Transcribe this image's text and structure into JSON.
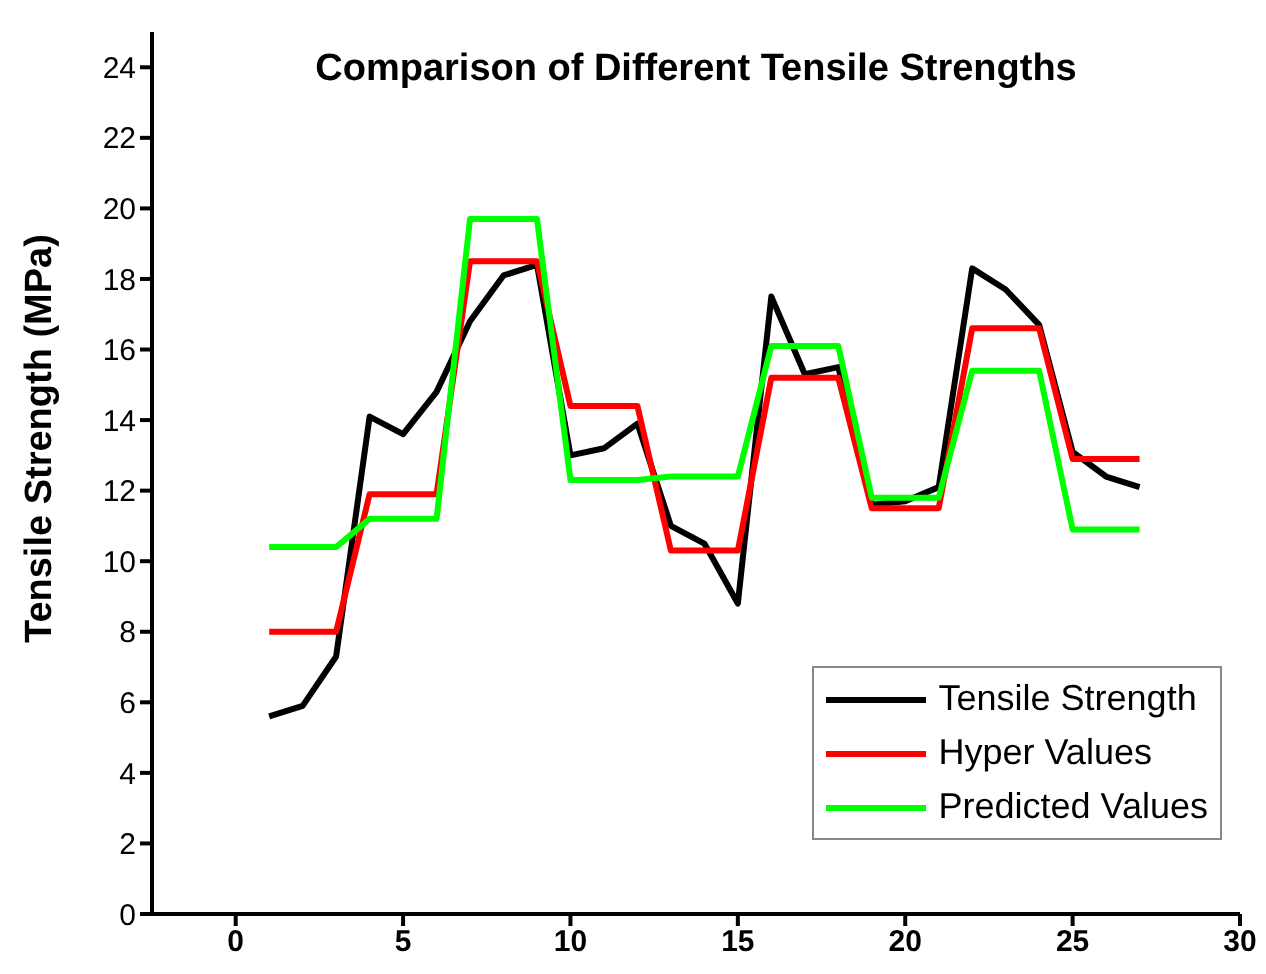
{
  "chart_data": {
    "type": "line",
    "title": "Comparison of Different Tensile Strengths",
    "ylabel": "Tensile Strength (MPa)",
    "x": [
      1,
      2,
      3,
      4,
      5,
      6,
      7,
      8,
      9,
      10,
      11,
      12,
      13,
      14,
      15,
      16,
      17,
      18,
      19,
      20,
      21,
      22,
      23,
      24,
      25,
      26,
      27
    ],
    "xlim": [
      -2.5,
      30
    ],
    "xticks": [
      0,
      5,
      10,
      15,
      20,
      25,
      30
    ],
    "ylim": [
      0,
      25
    ],
    "yticks": [
      0,
      2,
      4,
      6,
      8,
      10,
      12,
      14,
      16,
      18,
      20,
      22,
      24
    ],
    "grid": false,
    "legend": "bottom right",
    "marker": "none",
    "line_style": "solid",
    "series": [
      {
        "name": "Tensile Strength",
        "color": "#000000",
        "values": [
          5.6,
          5.9,
          7.3,
          14.1,
          13.6,
          14.8,
          16.8,
          18.1,
          18.4,
          13.0,
          13.2,
          13.9,
          11.0,
          10.5,
          8.8,
          17.5,
          15.3,
          15.5,
          11.6,
          11.7,
          12.1,
          18.3,
          17.7,
          16.7,
          13.1,
          12.4,
          12.1
        ]
      },
      {
        "name": "Hyper Values",
        "color": "#ff0000",
        "values": [
          8.0,
          8.0,
          8.0,
          11.9,
          11.9,
          11.9,
          18.5,
          18.5,
          18.5,
          14.4,
          14.4,
          14.4,
          10.3,
          10.3,
          10.3,
          15.2,
          15.2,
          15.2,
          11.5,
          11.5,
          11.5,
          16.6,
          16.6,
          16.6,
          12.9,
          12.9,
          12.9
        ]
      },
      {
        "name": "Predicted Values",
        "color": "#00ff00",
        "values": [
          10.4,
          10.4,
          10.4,
          11.2,
          11.2,
          11.2,
          19.7,
          19.7,
          19.7,
          12.3,
          12.3,
          12.3,
          12.4,
          12.4,
          12.4,
          16.1,
          16.1,
          16.1,
          11.8,
          11.8,
          11.8,
          15.4,
          15.4,
          15.4,
          10.9,
          10.9,
          10.9
        ]
      }
    ]
  }
}
